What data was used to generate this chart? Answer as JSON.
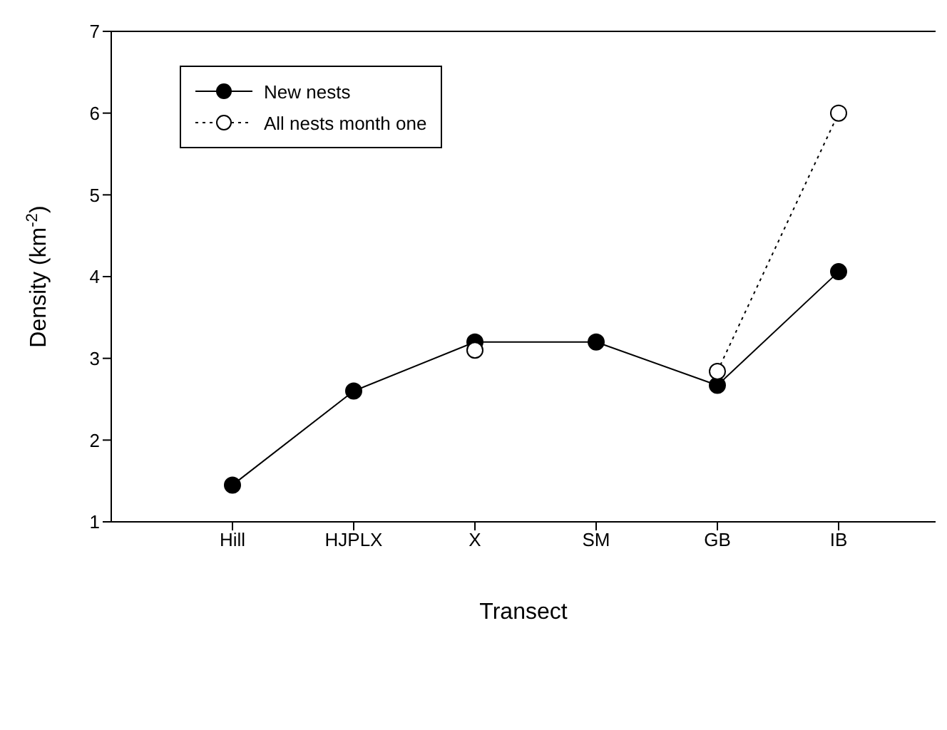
{
  "chart_data": {
    "type": "line",
    "xlabel": "Transect",
    "ylabel": "Density (km$^{-2}$)",
    "categories": [
      "Hill",
      "HJPLX",
      "X",
      "SM",
      "GB",
      "IB"
    ],
    "ylim": [
      1,
      7
    ],
    "yticks": [
      1,
      2,
      3,
      4,
      5,
      6,
      7
    ],
    "grid": false,
    "legend": "top left",
    "marker": "circle",
    "series": [
      {
        "name": "New nests",
        "color": "#000000",
        "line_style": "solid",
        "values": [
          1.45,
          2.6,
          3.2,
          3.2,
          2.67,
          4.06
        ]
      },
      {
        "name": "All nests month one",
        "color": "#000000",
        "line_style": "dotted",
        "values": [
          null,
          null,
          3.1,
          null,
          2.84,
          6.0
        ]
      }
    ]
  }
}
